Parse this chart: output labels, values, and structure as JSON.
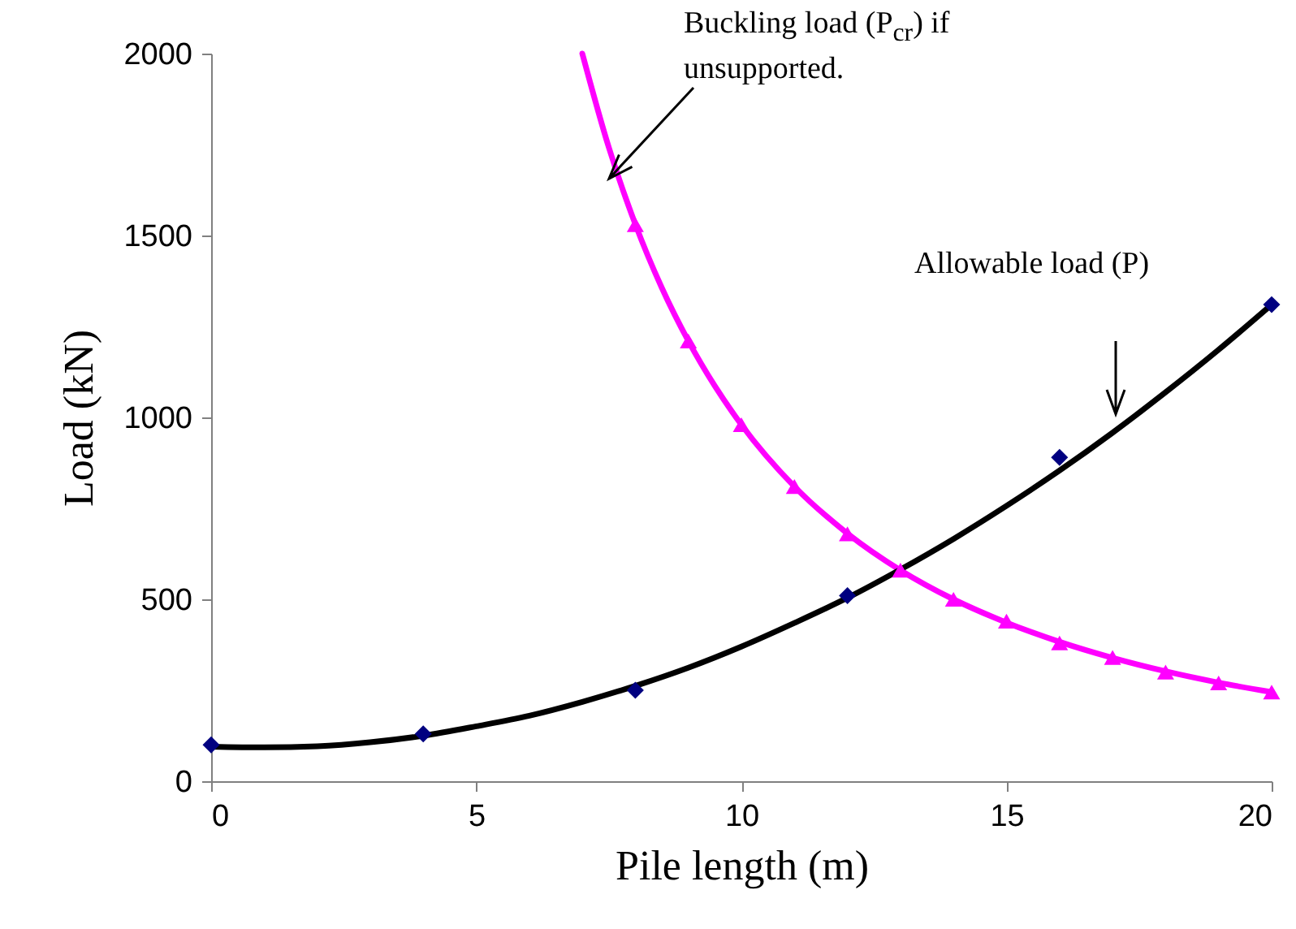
{
  "chart_data": {
    "type": "scatter",
    "xlabel": "Pile length (m)",
    "ylabel": "Load (kN)",
    "xlim": [
      0,
      20
    ],
    "xticks": [
      0,
      5,
      10,
      15,
      20
    ],
    "ylim": [
      0,
      2000
    ],
    "yticks": [
      0,
      500,
      1000,
      1500,
      2000
    ],
    "series": [
      {
        "type": "line",
        "marker": "none",
        "color": "#ff00ff",
        "x": [
          7,
          7.5,
          8,
          8.5,
          9,
          9.5,
          10,
          11,
          12,
          13,
          14,
          15,
          16,
          17,
          18,
          19,
          20
        ],
        "values": [
          2000,
          1742,
          1531,
          1356,
          1210,
          1086,
          980,
          810,
          681,
          580,
          500,
          436,
          383,
          339,
          302,
          271,
          245
        ]
      },
      {
        "type": "line",
        "marker": "none",
        "color": "#000000",
        "x": [
          0,
          1,
          2,
          3,
          4,
          5,
          6,
          7,
          8,
          9,
          10,
          11,
          12,
          13,
          14,
          15,
          16,
          17,
          18,
          19,
          20
        ],
        "values": [
          95,
          93,
          96,
          107,
          125,
          151,
          180,
          218,
          262,
          312,
          370,
          435,
          504,
          582,
          666,
          757,
          854,
          958,
          1069,
          1186,
          1310
        ]
      },
      {
        "marker": "diamond",
        "color": "#000080",
        "x": [
          0,
          4,
          8,
          12,
          16,
          20
        ],
        "values": [
          100,
          130,
          250,
          510,
          890,
          1310
        ]
      },
      {
        "marker": "triangle",
        "color": "#ff00ff",
        "x": [
          8,
          9,
          10,
          11,
          12,
          13,
          14,
          15,
          16,
          17,
          18,
          19,
          20
        ],
        "values": [
          1530,
          1210,
          980,
          810,
          680,
          580,
          500,
          440,
          380,
          340,
          300,
          270,
          245
        ]
      }
    ],
    "annotations": [
      "Buckling load (P$_{cr}$) if unsupported.",
      "Allowable load (P)"
    ]
  }
}
